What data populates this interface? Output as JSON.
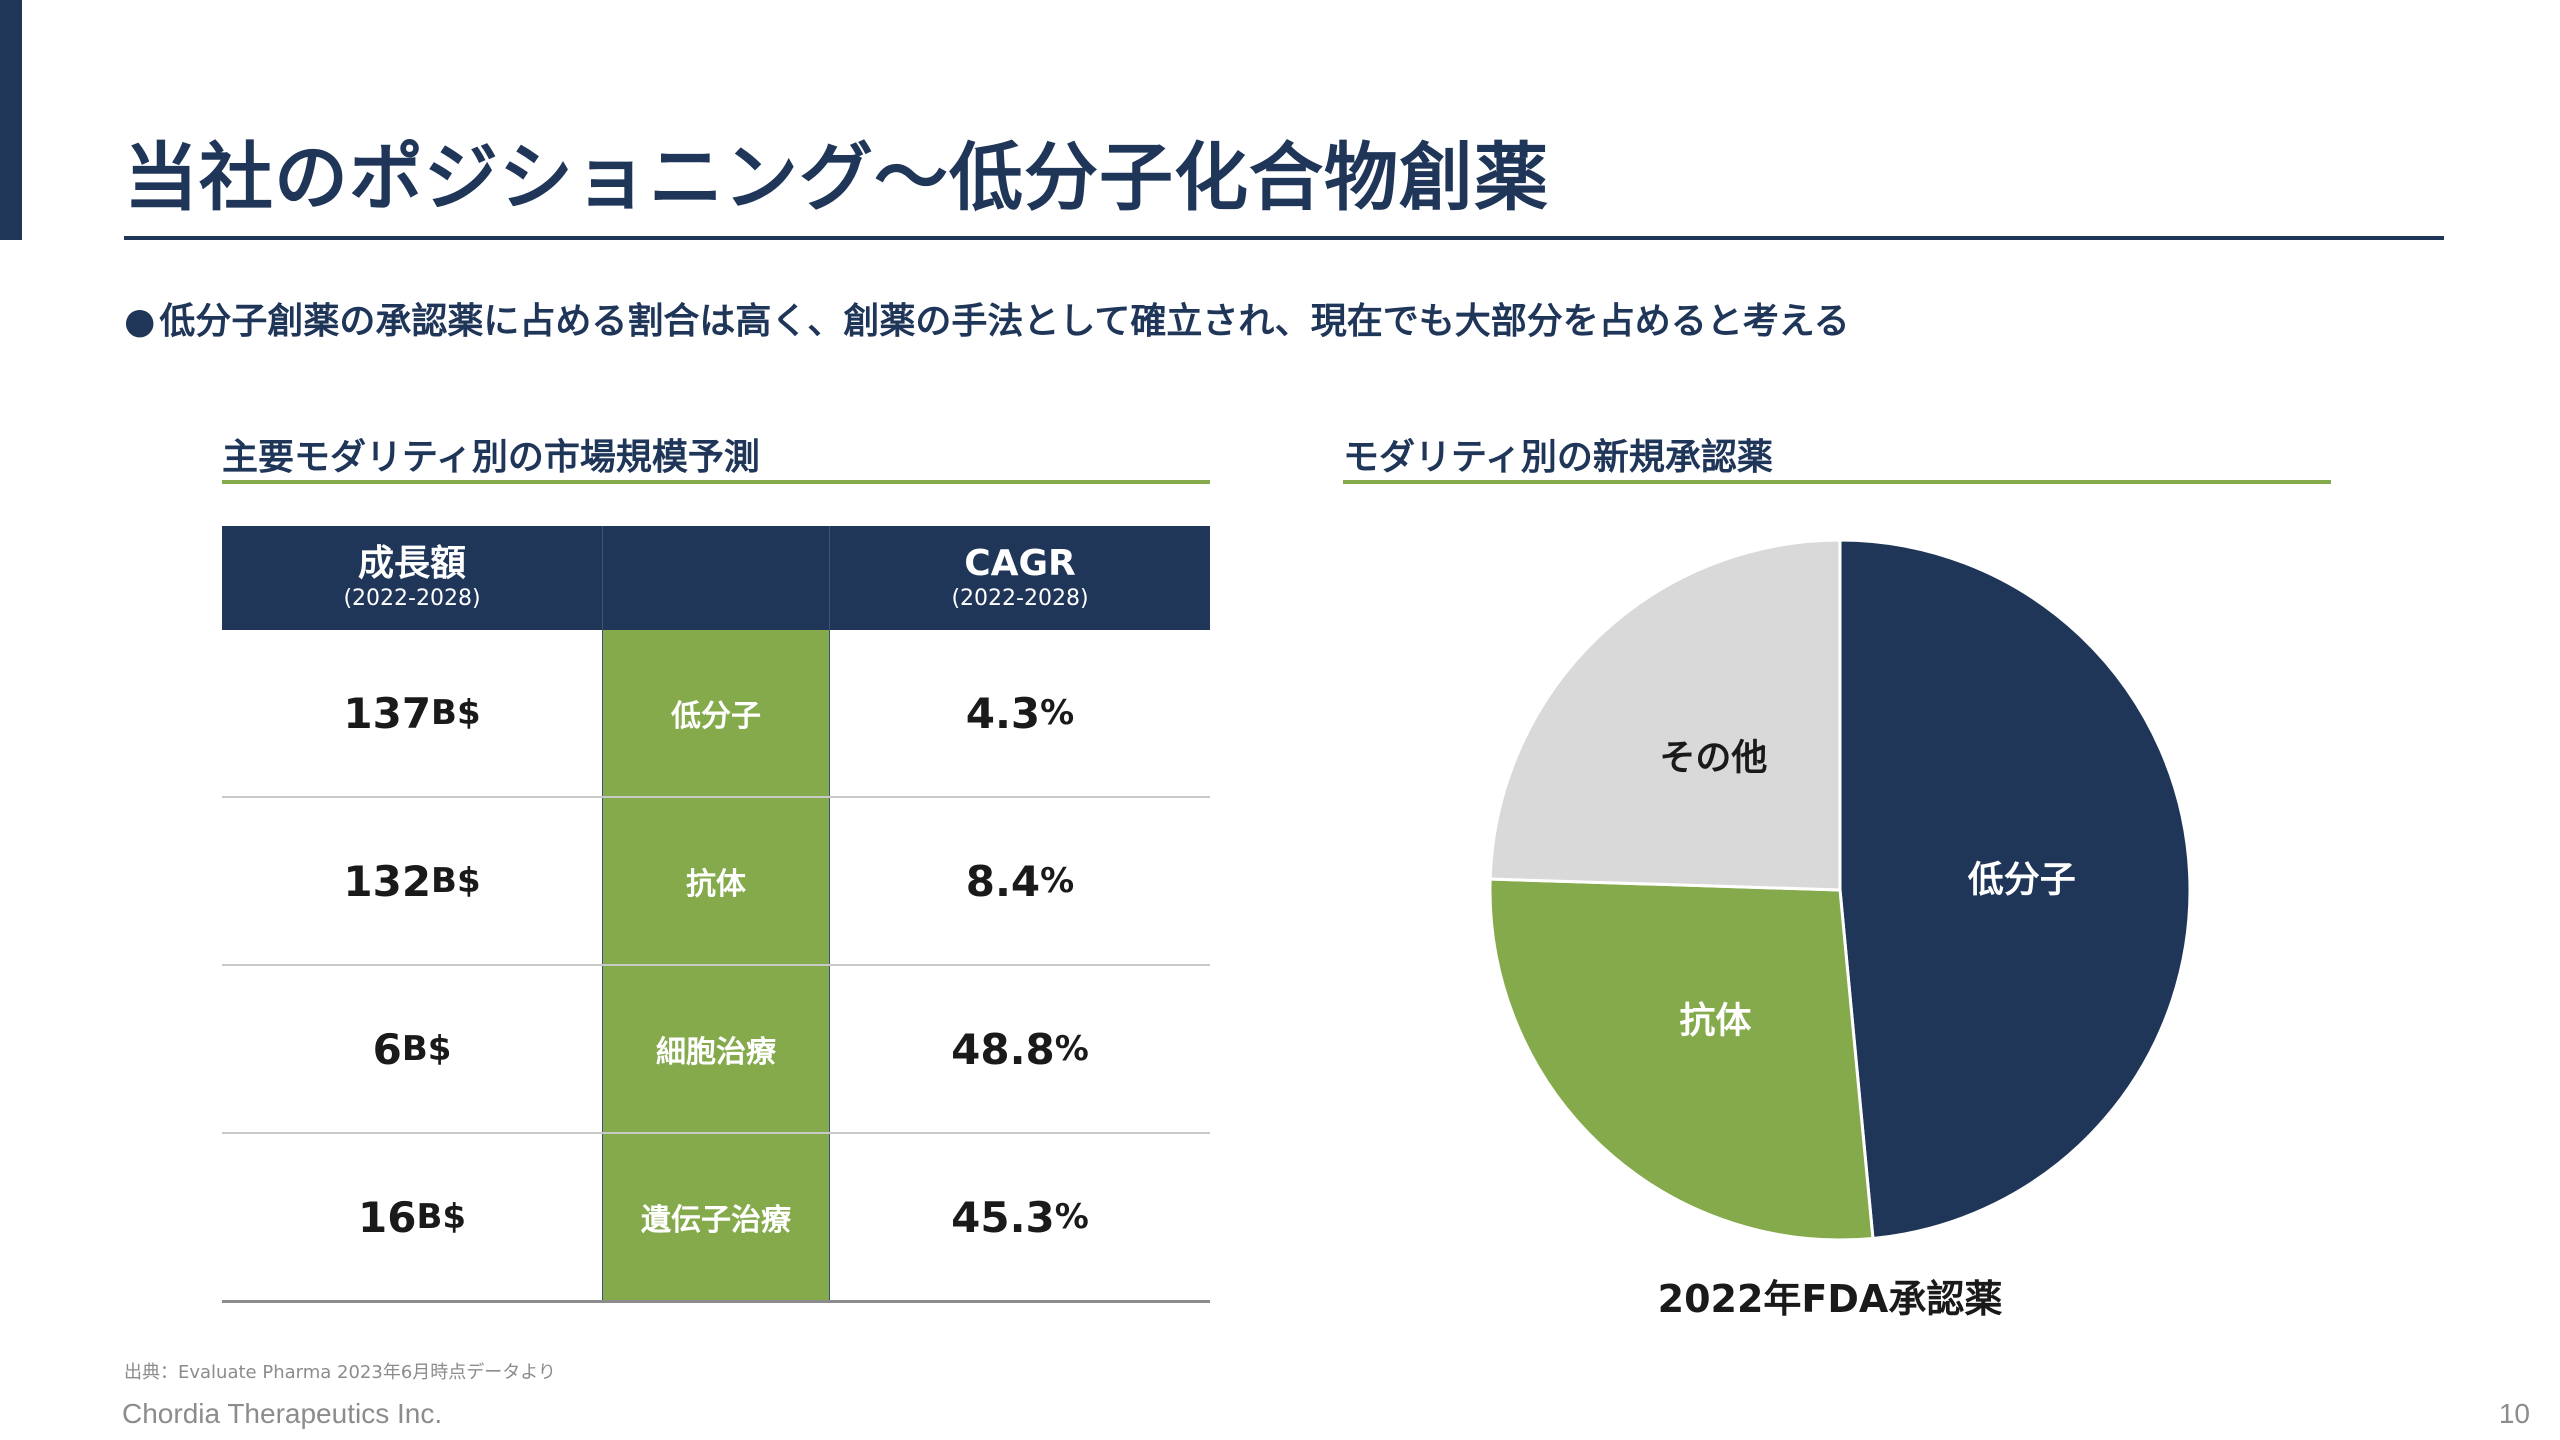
{
  "slide": {
    "title": "当社のポジショニング～低分子化合物創薬",
    "lead_bullet": "●",
    "lead": "低分子創薬の承認薬に占める割合は高く、創薬の手法として確立され、現在でも大部分を占めると考える",
    "source": "出典：Evaluate Pharma 2023年6月時点データより",
    "company": "Chordia Therapeutics Inc.",
    "page_number": "10"
  },
  "colors": {
    "navy": "#1f3659",
    "green": "#84aa4c",
    "light_gray": "#d9d9d9"
  },
  "market_table": {
    "section_title": "主要モダリティ別の市場規模予測",
    "headers": {
      "growth": "成長額",
      "growth_period": "(2022-2028)",
      "modality": "",
      "cagr": "CAGR",
      "cagr_period": "(2022-2028)"
    },
    "rows": [
      {
        "growth_value": "137",
        "growth_unit": "B$",
        "modality": "低分子",
        "cagr_value": "4.3",
        "cagr_unit": "%"
      },
      {
        "growth_value": "132",
        "growth_unit": "B$",
        "modality": "抗体",
        "cagr_value": "8.4",
        "cagr_unit": "%"
      },
      {
        "growth_value": "6",
        "growth_unit": "B$",
        "modality": "細胞治療",
        "cagr_value": "48.8",
        "cagr_unit": "%"
      },
      {
        "growth_value": "16",
        "growth_unit": "B$",
        "modality": "遺伝子治療",
        "cagr_value": "45.3",
        "cagr_unit": "%"
      }
    ]
  },
  "chart_data": {
    "type": "pie",
    "section_title": "モダリティ別の新規承認薬",
    "caption": "2022年FDA承認薬",
    "slices": [
      {
        "label": "低分子",
        "value": 48.5,
        "color": "#1f3659",
        "label_color": "#ffffff"
      },
      {
        "label": "抗体",
        "value": 27,
        "color": "#84aa4c",
        "label_color": "#ffffff"
      },
      {
        "label": "その他",
        "value": 24.5,
        "color": "#d9d9d9",
        "label_color": "#1a1a1a"
      }
    ]
  }
}
